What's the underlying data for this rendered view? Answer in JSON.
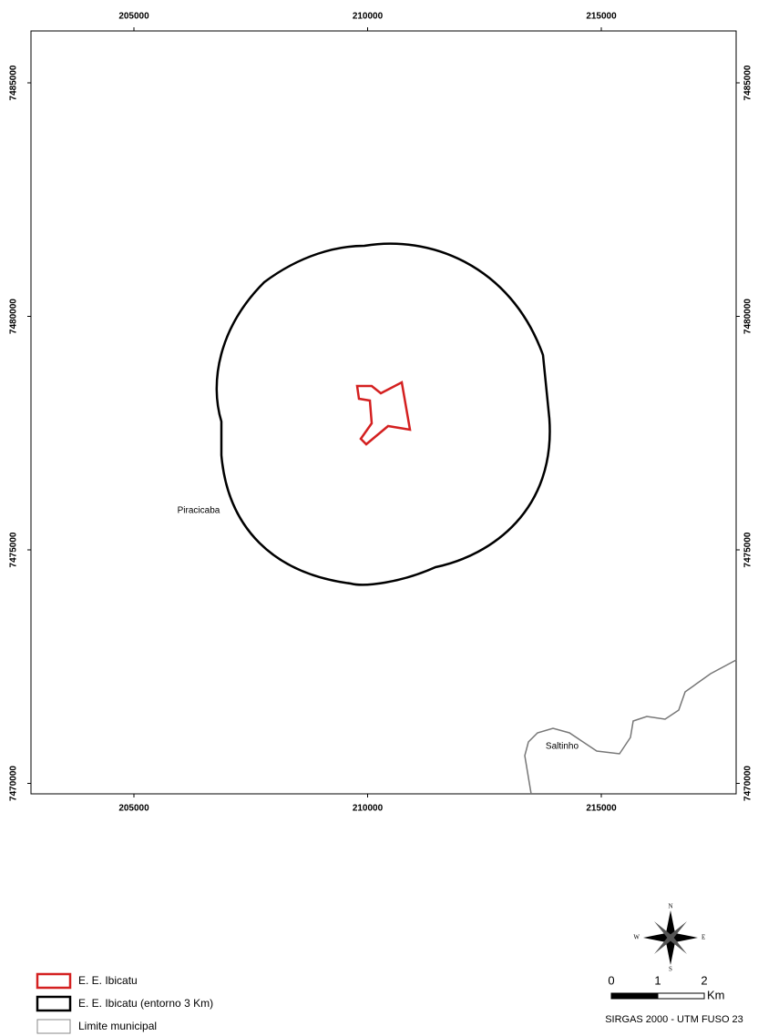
{
  "map": {
    "x_ticks": [
      205000,
      210000,
      215000
    ],
    "y_ticks": [
      7485000,
      7480000,
      7475000,
      7470000
    ],
    "places": [
      "Piracicaba",
      "Saltinho"
    ],
    "legend": [
      "E. E. Ibicatu",
      "E. E. Ibicatu (entorno 3 Km)",
      "Limite municipal"
    ],
    "scale": {
      "labels": [
        "0",
        "1",
        "2"
      ],
      "unit": "Km"
    },
    "compass": [
      "N",
      "E",
      "S",
      "W"
    ],
    "projection": "SIRGAS 2000 - UTM FUSO 23"
  }
}
